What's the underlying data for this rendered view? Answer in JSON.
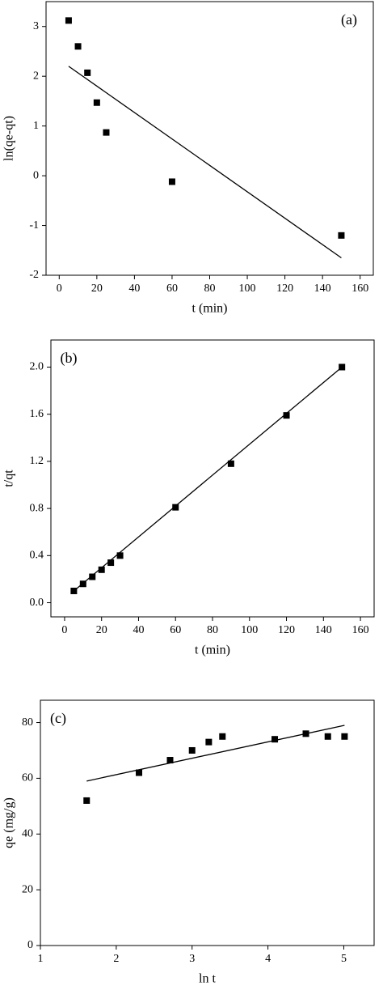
{
  "chart_data": [
    {
      "type": "scatter",
      "annotation": "(a)",
      "xlabel": "t (min)",
      "ylabel": "ln(qe-qt)",
      "x": [
        5,
        10,
        15,
        20,
        25,
        60,
        150
      ],
      "values": [
        3.12,
        2.6,
        2.07,
        1.47,
        0.87,
        -0.12,
        -1.2
      ],
      "fit": {
        "x": [
          5,
          150
        ],
        "y": [
          2.2,
          -1.65
        ]
      },
      "xlim": [
        -7,
        167
      ],
      "ylim": [
        -2,
        3.5
      ],
      "xticks": [
        0,
        20,
        40,
        60,
        80,
        100,
        120,
        140,
        160
      ],
      "yticks": [
        -2,
        -1,
        0,
        1,
        2,
        3
      ],
      "color": "#000000"
    },
    {
      "type": "scatter",
      "annotation": "(b)",
      "xlabel": "t (min)",
      "ylabel": "t/qt",
      "x": [
        5,
        10,
        15,
        20,
        25,
        30,
        60,
        90,
        120,
        150
      ],
      "values": [
        0.1,
        0.16,
        0.22,
        0.28,
        0.34,
        0.4,
        0.81,
        1.18,
        1.59,
        2.0
      ],
      "fit": {
        "x": [
          5,
          150
        ],
        "y": [
          0.1,
          2.0
        ]
      },
      "xlim": [
        -7.4,
        167.4
      ],
      "ylim": [
        -0.12,
        2.23
      ],
      "xticks": [
        0,
        20,
        40,
        60,
        80,
        100,
        120,
        140,
        160
      ],
      "yticks": [
        {
          "value": 0,
          "label": "0.0"
        },
        0.4,
        0.8,
        1.2,
        1.6,
        {
          "value": 2,
          "label": "2.0"
        }
      ],
      "color": "#000000"
    },
    {
      "type": "scatter",
      "annotation": "(c)",
      "xlabel": "ln t",
      "ylabel": "qe (mg/g)",
      "x": [
        1.61,
        2.3,
        2.71,
        3.0,
        3.22,
        3.4,
        4.09,
        4.5,
        4.79,
        5.01
      ],
      "values": [
        52,
        62,
        66.5,
        70,
        73,
        75,
        74,
        76,
        75,
        75
      ],
      "fit": {
        "x": [
          1.61,
          5.01
        ],
        "y": [
          59,
          79
        ]
      },
      "xlim": [
        1,
        5.4
      ],
      "ylim": [
        0,
        88
      ],
      "xticks": [
        1,
        2,
        3,
        4,
        5
      ],
      "yticks": [
        0,
        20,
        40,
        60,
        80
      ],
      "color": "#000000"
    }
  ]
}
